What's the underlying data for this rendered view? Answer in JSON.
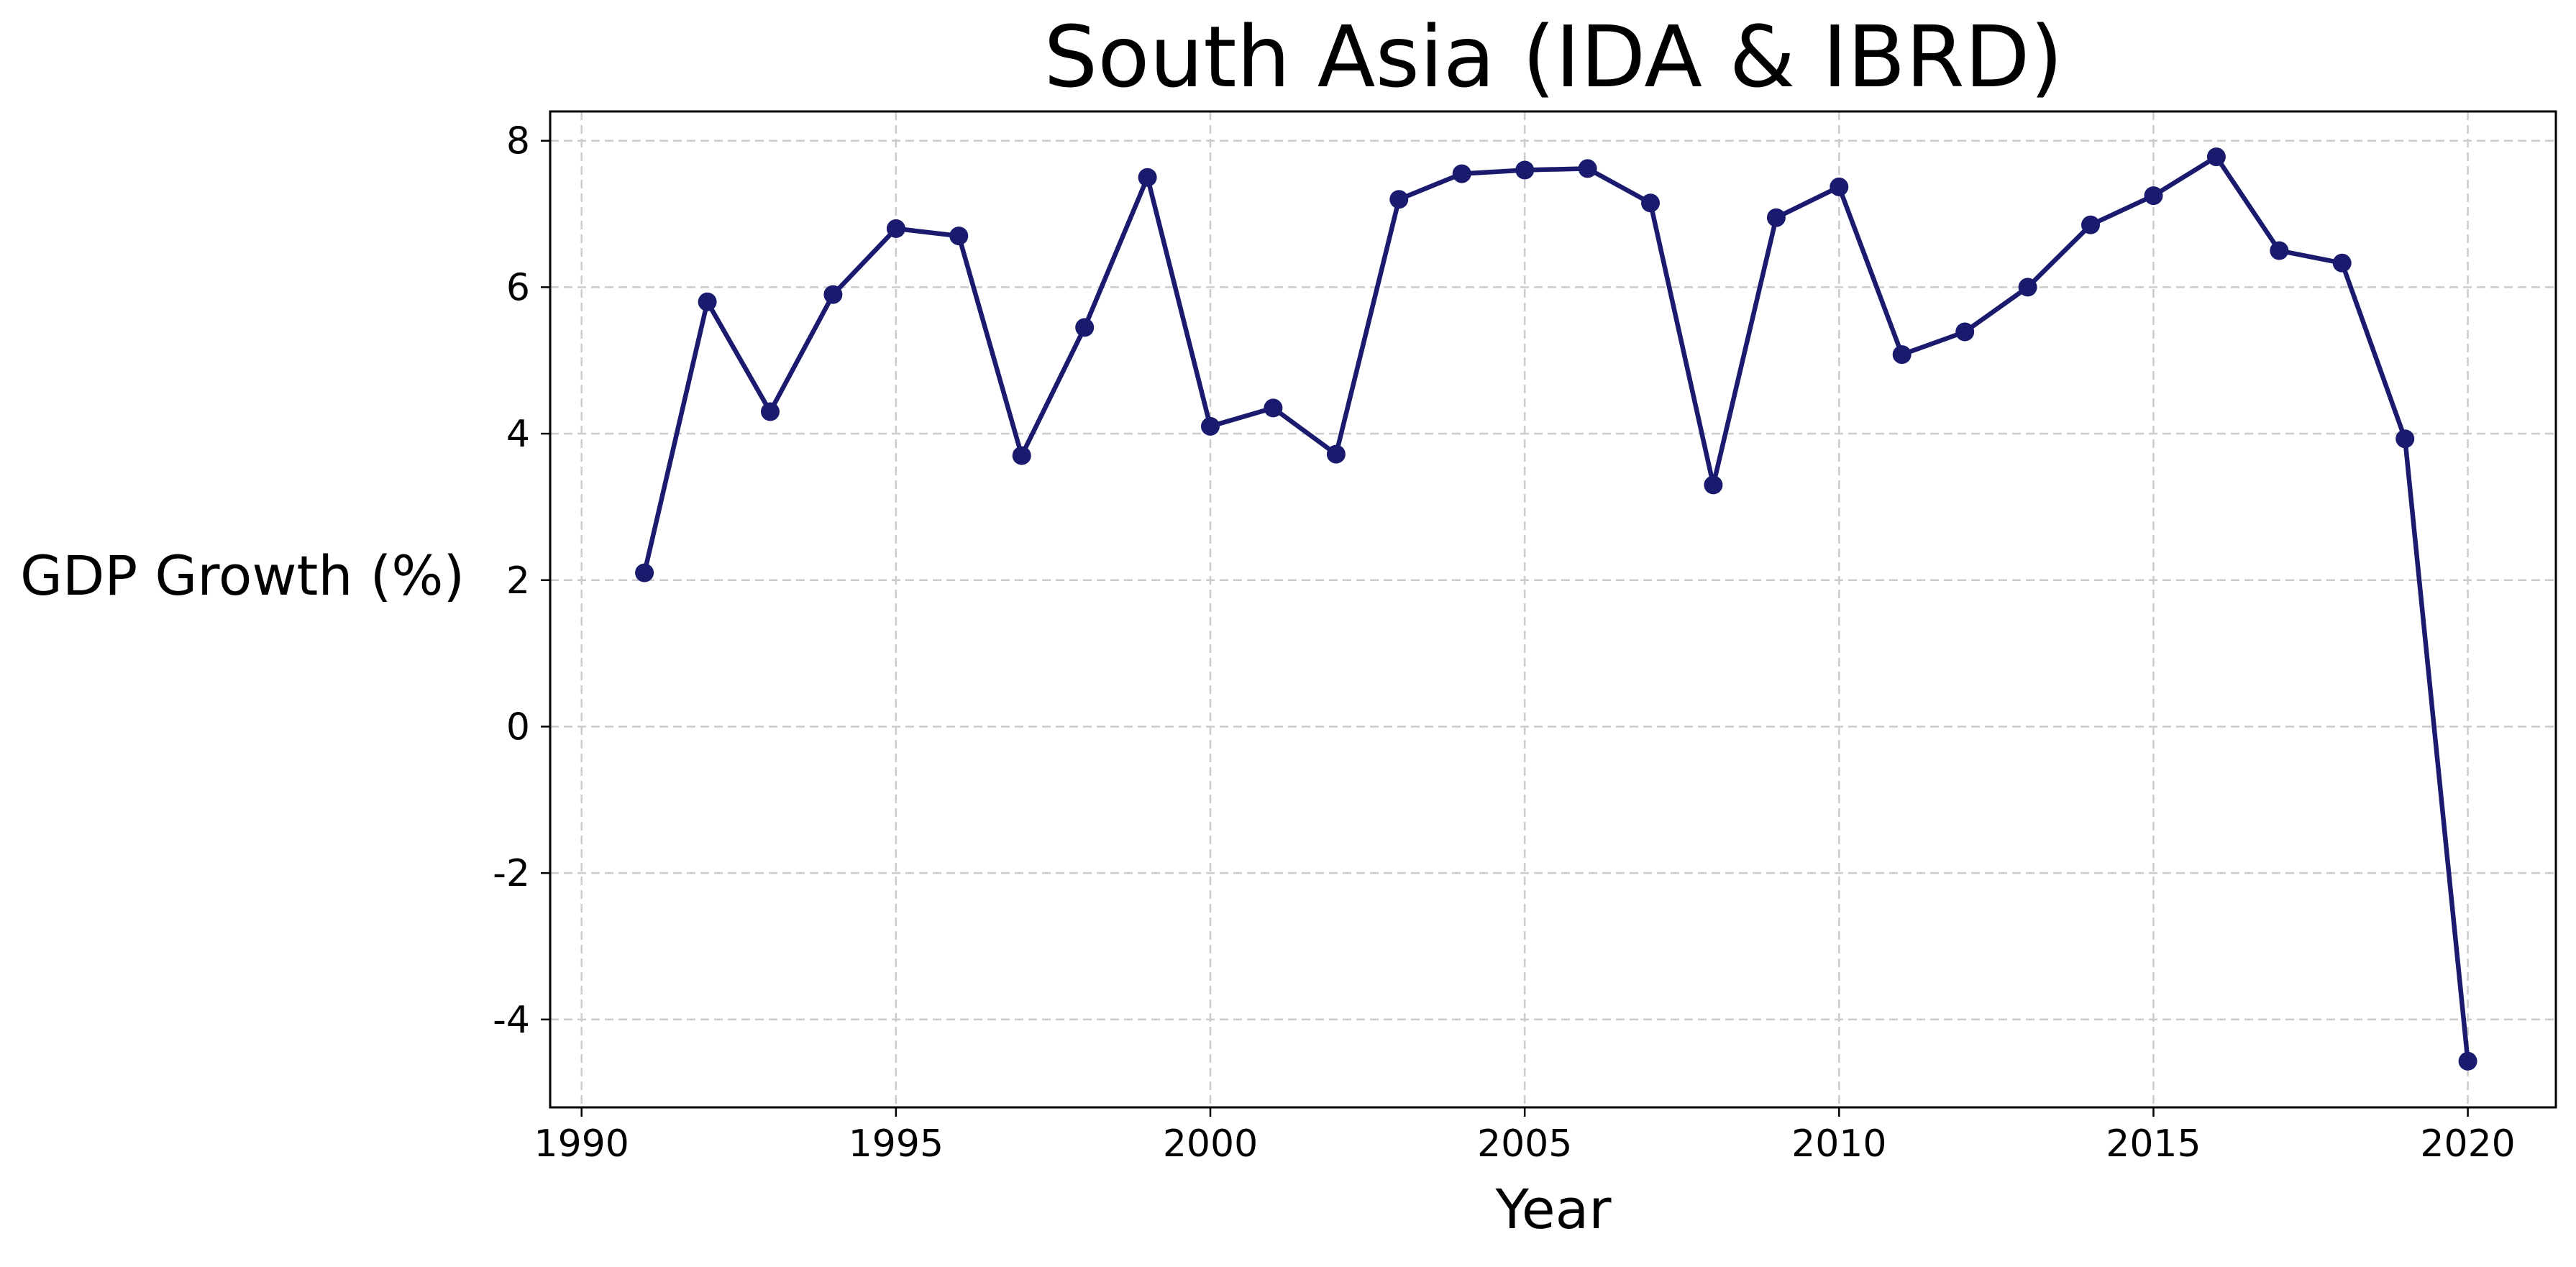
{
  "chart_data": {
    "type": "line",
    "title": "South Asia (IDA & IBRD)",
    "xlabel": "Year",
    "ylabel": "GDP Growth (%)",
    "xlim": [
      1989.5,
      2021.4
    ],
    "ylim": [
      -5.2,
      8.4
    ],
    "xticks": [
      1990,
      1995,
      2000,
      2005,
      2010,
      2015,
      2020
    ],
    "yticks": [
      -4,
      -2,
      0,
      2,
      4,
      6,
      8
    ],
    "grid": true,
    "legend": "none",
    "colors": {
      "line": "#1a1a6e",
      "grid": "#cccccc"
    },
    "series": [
      {
        "x": [
          1991,
          1992,
          1993,
          1994,
          1995,
          1996,
          1997,
          1998,
          1999,
          2000,
          2001,
          2002,
          2003,
          2004,
          2005,
          2006,
          2007,
          2008,
          2009,
          2010,
          2011,
          2012,
          2013,
          2014,
          2015,
          2016,
          2017,
          2018,
          2019,
          2020
        ],
        "y": [
          2.1,
          5.8,
          4.3,
          5.9,
          6.8,
          6.7,
          3.7,
          5.45,
          7.5,
          4.1,
          4.35,
          3.72,
          7.2,
          7.55,
          7.6,
          7.62,
          7.15,
          3.3,
          6.95,
          7.37,
          5.08,
          5.39,
          6.0,
          6.85,
          7.25,
          7.78,
          6.5,
          6.33,
          3.93,
          -4.57
        ]
      }
    ]
  }
}
